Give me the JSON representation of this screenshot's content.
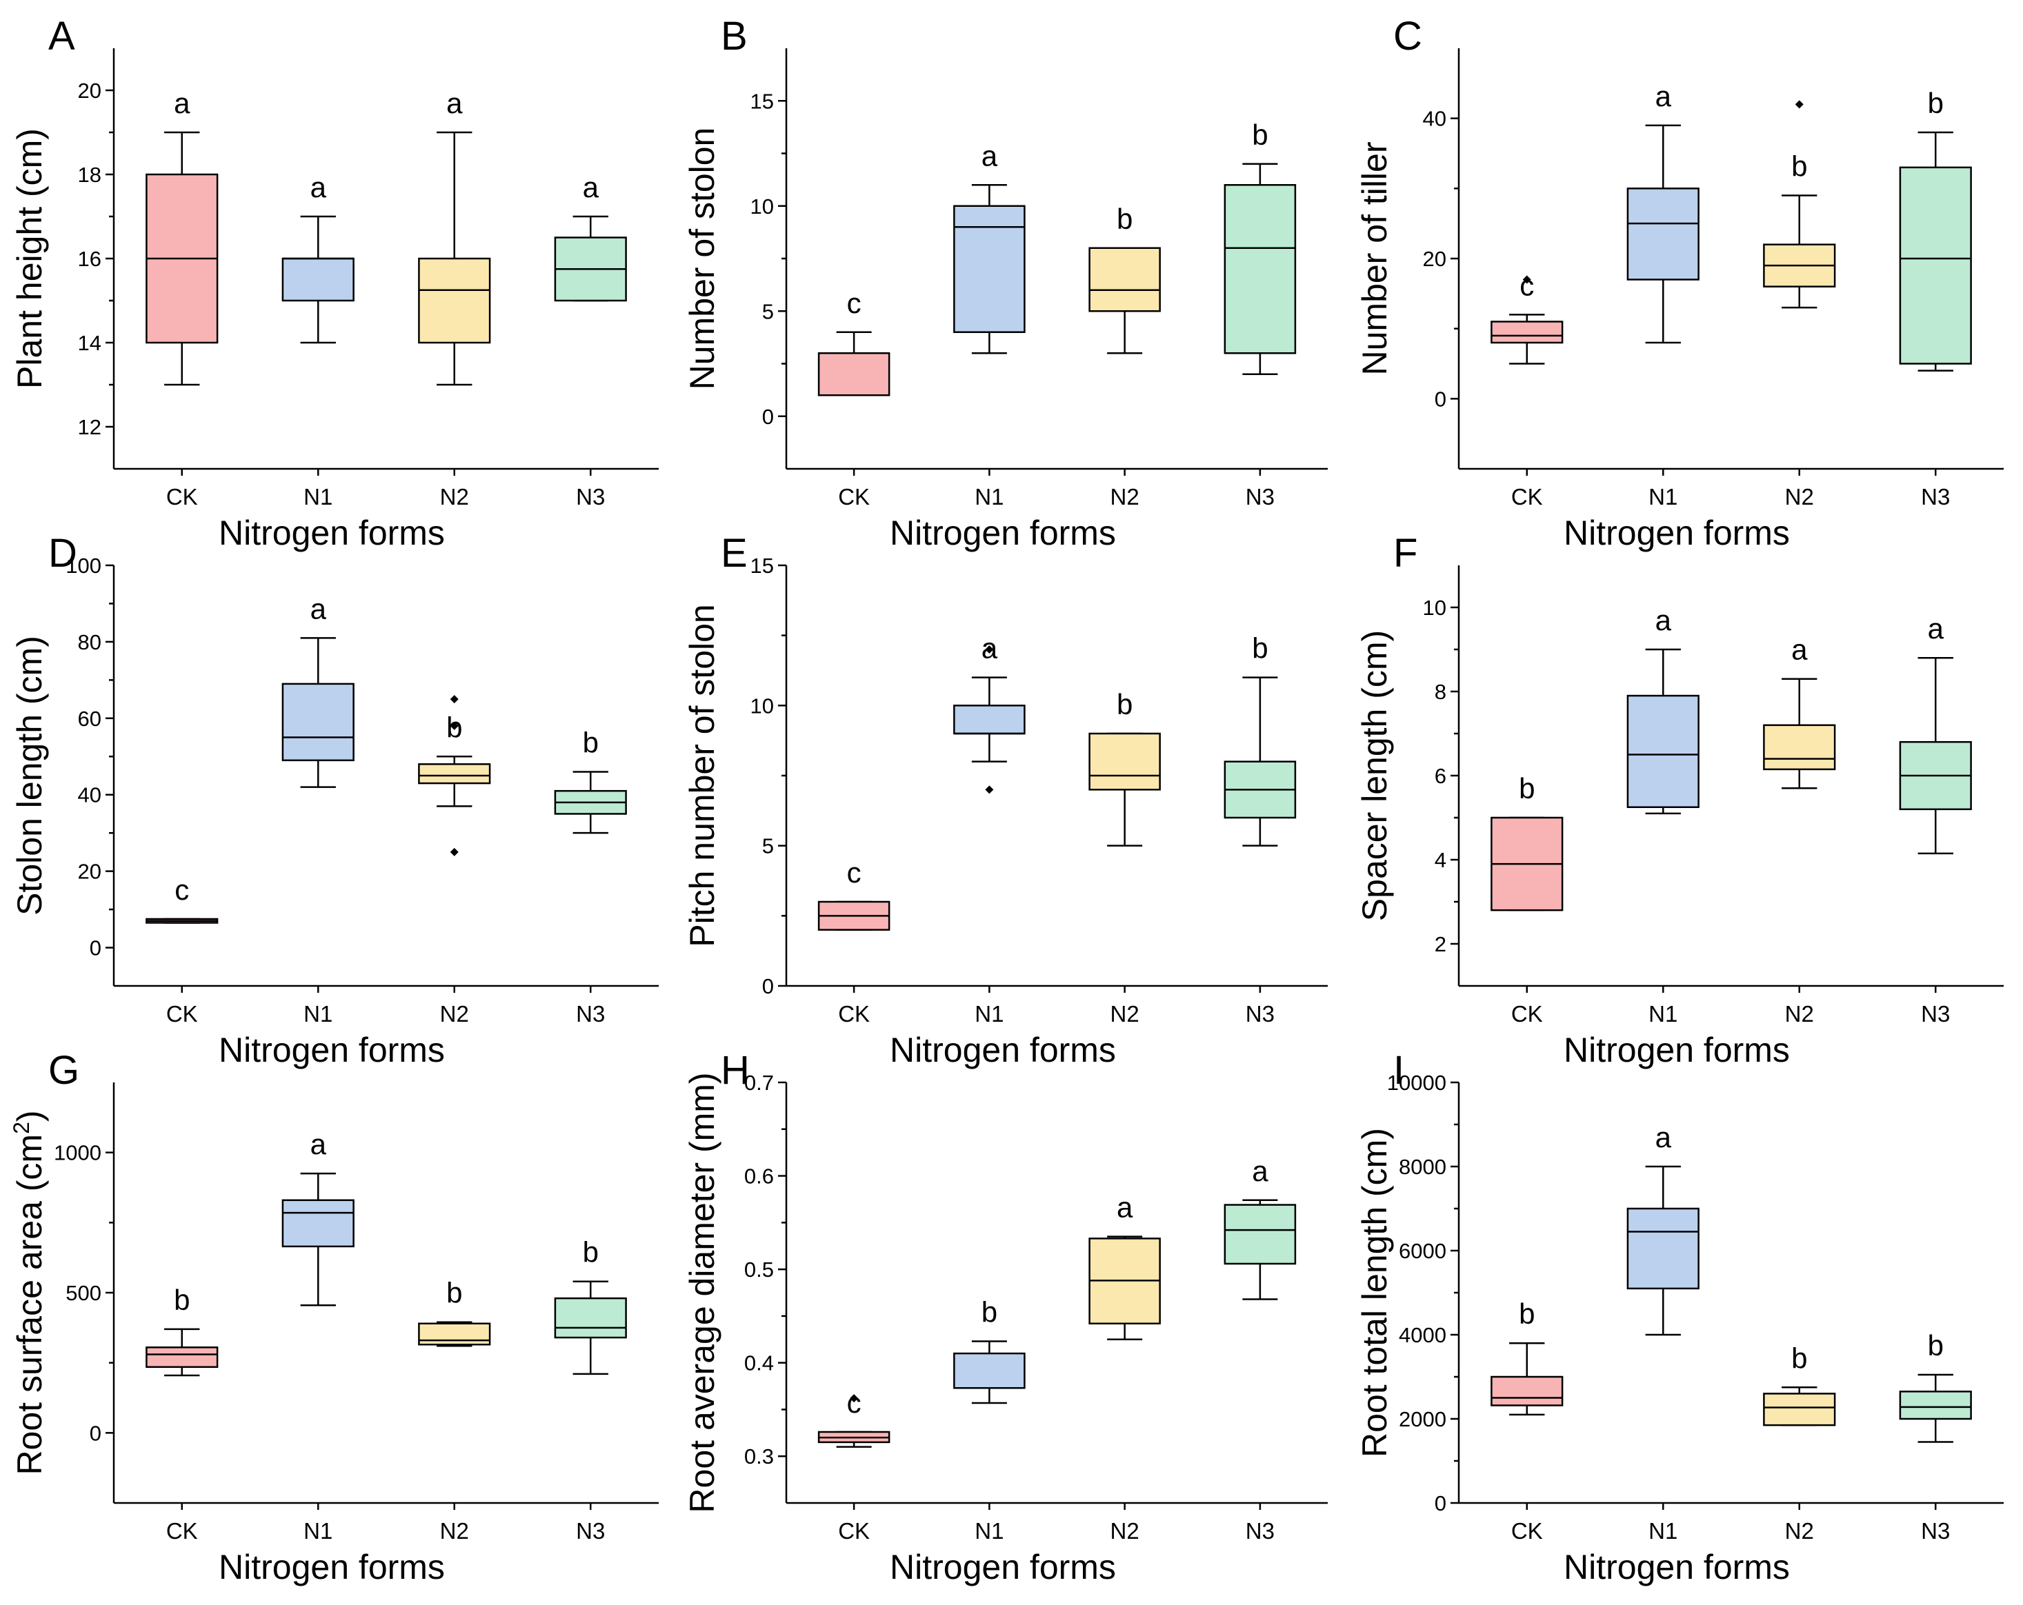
{
  "figure": {
    "categories": [
      "CK",
      "N1",
      "N2",
      "N3"
    ],
    "x_label": "Nitrogen forms",
    "colors": {
      "CK": "#F8B4B4",
      "N1": "#BCD1EE",
      "N2": "#FBE8AF",
      "N3": "#BDEAD3"
    }
  },
  "chart_data": [
    {
      "panel": "A",
      "type": "box",
      "ylabel": "Plant height (cm)",
      "xlabel": "Nitrogen forms",
      "ylim": [
        11,
        21
      ],
      "yticks": [
        12,
        14,
        16,
        18,
        20
      ],
      "categories": [
        "CK",
        "N1",
        "N2",
        "N3"
      ],
      "boxes": [
        {
          "group": "CK",
          "min": 13,
          "q1": 14,
          "median": 16,
          "q3": 18,
          "max": 19,
          "outliers": [],
          "letter": "a"
        },
        {
          "group": "N1",
          "min": 14,
          "q1": 15,
          "median": 16,
          "q3": 16,
          "max": 17,
          "outliers": [],
          "letter": "a"
        },
        {
          "group": "N2",
          "min": 13,
          "q1": 14,
          "median": 15.25,
          "q3": 16,
          "max": 19,
          "outliers": [],
          "letter": "a"
        },
        {
          "group": "N3",
          "min": 15,
          "q1": 15,
          "median": 15.75,
          "q3": 16.5,
          "max": 17,
          "outliers": [],
          "letter": "a"
        }
      ]
    },
    {
      "panel": "B",
      "type": "box",
      "ylabel": "Number of stolon",
      "xlabel": "Nitrogen forms",
      "ylim": [
        -2.5,
        17.5
      ],
      "yticks": [
        0,
        5,
        10,
        15
      ],
      "categories": [
        "CK",
        "N1",
        "N2",
        "N3"
      ],
      "boxes": [
        {
          "group": "CK",
          "min": 1,
          "q1": 1,
          "median": 1,
          "q3": 3,
          "max": 4,
          "outliers": [],
          "letter": "c"
        },
        {
          "group": "N1",
          "min": 3,
          "q1": 4,
          "median": 9,
          "q3": 10,
          "max": 11,
          "outliers": [],
          "letter": "a"
        },
        {
          "group": "N2",
          "min": 3,
          "q1": 5,
          "median": 6,
          "q3": 8,
          "max": 8,
          "outliers": [],
          "letter": "b"
        },
        {
          "group": "N3",
          "min": 2,
          "q1": 3,
          "median": 8,
          "q3": 11,
          "max": 12,
          "outliers": [],
          "letter": "b"
        }
      ]
    },
    {
      "panel": "C",
      "type": "box",
      "ylabel": "Number of tiller",
      "xlabel": "Nitrogen forms",
      "ylim": [
        -10,
        50
      ],
      "yticks": [
        0,
        20,
        40
      ],
      "categories": [
        "CK",
        "N1",
        "N2",
        "N3"
      ],
      "boxes": [
        {
          "group": "CK",
          "min": 5,
          "q1": 8,
          "median": 9,
          "q3": 11,
          "max": 12,
          "outliers": [
            17
          ],
          "letter": "c"
        },
        {
          "group": "N1",
          "min": 8,
          "q1": 17,
          "median": 25,
          "q3": 30,
          "max": 39,
          "outliers": [],
          "letter": "a"
        },
        {
          "group": "N2",
          "min": 13,
          "q1": 16,
          "median": 19,
          "q3": 22,
          "max": 29,
          "outliers": [
            42
          ],
          "letter": "b"
        },
        {
          "group": "N3",
          "min": 4,
          "q1": 5,
          "median": 20,
          "q3": 33,
          "max": 38,
          "outliers": [],
          "letter": "b"
        }
      ]
    },
    {
      "panel": "D",
      "type": "box",
      "ylabel": "Stolon length (cm)",
      "xlabel": "Nitrogen forms",
      "ylim": [
        -10,
        100
      ],
      "yticks": [
        0,
        20,
        40,
        60,
        80,
        100
      ],
      "categories": [
        "CK",
        "N1",
        "N2",
        "N3"
      ],
      "boxes": [
        {
          "group": "CK",
          "min": 6.5,
          "q1": 6.5,
          "median": 7,
          "q3": 7.5,
          "max": 7.5,
          "outliers": [],
          "letter": "c"
        },
        {
          "group": "N1",
          "min": 42,
          "q1": 49,
          "median": 55,
          "q3": 69,
          "max": 81,
          "outliers": [],
          "letter": "a"
        },
        {
          "group": "N2",
          "min": 37,
          "q1": 43,
          "median": 45,
          "q3": 48,
          "max": 50,
          "outliers": [
            25,
            58,
            65
          ],
          "letter": "b"
        },
        {
          "group": "N3",
          "min": 30,
          "q1": 35,
          "median": 38,
          "q3": 41,
          "max": 46,
          "outliers": [],
          "letter": "b"
        }
      ]
    },
    {
      "panel": "E",
      "type": "box",
      "ylabel": "Pitch number of stolon",
      "xlabel": "Nitrogen forms",
      "ylim": [
        0,
        15
      ],
      "yticks": [
        0,
        5,
        10,
        15
      ],
      "categories": [
        "CK",
        "N1",
        "N2",
        "N3"
      ],
      "boxes": [
        {
          "group": "CK",
          "min": 2,
          "q1": 2,
          "median": 2.5,
          "q3": 3,
          "max": 3,
          "outliers": [],
          "letter": "c"
        },
        {
          "group": "N1",
          "min": 8,
          "q1": 9,
          "median": 9,
          "q3": 10,
          "max": 11,
          "outliers": [
            7,
            12
          ],
          "letter": "a"
        },
        {
          "group": "N2",
          "min": 5,
          "q1": 7,
          "median": 7.5,
          "q3": 9,
          "max": 9,
          "outliers": [],
          "letter": "b"
        },
        {
          "group": "N3",
          "min": 5,
          "q1": 6,
          "median": 7,
          "q3": 8,
          "max": 11,
          "outliers": [],
          "letter": "b"
        }
      ]
    },
    {
      "panel": "F",
      "type": "box",
      "ylabel": "Spacer length (cm)",
      "xlabel": "Nitrogen forms",
      "ylim": [
        1,
        11
      ],
      "yticks": [
        2,
        4,
        6,
        8,
        10
      ],
      "categories": [
        "CK",
        "N1",
        "N2",
        "N3"
      ],
      "boxes": [
        {
          "group": "CK",
          "min": 2.8,
          "q1": 2.8,
          "median": 3.9,
          "q3": 5,
          "max": 5,
          "outliers": [],
          "letter": "b"
        },
        {
          "group": "N1",
          "min": 5.1,
          "q1": 5.25,
          "median": 6.5,
          "q3": 7.9,
          "max": 9,
          "outliers": [],
          "letter": "a"
        },
        {
          "group": "N2",
          "min": 5.7,
          "q1": 6.15,
          "median": 6.4,
          "q3": 7.2,
          "max": 8.3,
          "outliers": [],
          "letter": "a"
        },
        {
          "group": "N3",
          "min": 4.15,
          "q1": 5.2,
          "median": 6,
          "q3": 6.8,
          "max": 8.8,
          "outliers": [],
          "letter": "a"
        }
      ]
    },
    {
      "panel": "G",
      "type": "box",
      "ylabel": "Root surface area (cm²)",
      "xlabel": "Nitrogen forms",
      "ylim": [
        -250,
        1250
      ],
      "yticks": [
        0,
        500,
        1000
      ],
      "categories": [
        "CK",
        "N1",
        "N2",
        "N3"
      ],
      "boxes": [
        {
          "group": "CK",
          "min": 205,
          "q1": 235,
          "median": 280,
          "q3": 305,
          "max": 370,
          "outliers": [],
          "letter": "b"
        },
        {
          "group": "N1",
          "min": 455,
          "q1": 665,
          "median": 785,
          "q3": 830,
          "max": 925,
          "outliers": [],
          "letter": "a"
        },
        {
          "group": "N2",
          "min": 310,
          "q1": 315,
          "median": 330,
          "q3": 390,
          "max": 395,
          "outliers": [],
          "letter": "b"
        },
        {
          "group": "N3",
          "min": 210,
          "q1": 340,
          "median": 375,
          "q3": 480,
          "max": 540,
          "outliers": [],
          "letter": "b"
        }
      ]
    },
    {
      "panel": "H",
      "type": "box",
      "ylabel": "Root average diameter (mm)",
      "xlabel": "Nitrogen forms",
      "ylim": [
        0.25,
        0.7
      ],
      "yticks": [
        0.3,
        0.4,
        0.5,
        0.6,
        0.7
      ],
      "categories": [
        "CK",
        "N1",
        "N2",
        "N3"
      ],
      "boxes": [
        {
          "group": "CK",
          "min": 0.31,
          "q1": 0.315,
          "median": 0.32,
          "q3": 0.326,
          "max": 0.326,
          "outliers": [
            0.362
          ],
          "letter": "c"
        },
        {
          "group": "N1",
          "min": 0.357,
          "q1": 0.373,
          "median": 0.373,
          "q3": 0.41,
          "max": 0.423,
          "outliers": [],
          "letter": "b"
        },
        {
          "group": "N2",
          "min": 0.425,
          "q1": 0.442,
          "median": 0.488,
          "q3": 0.533,
          "max": 0.535,
          "outliers": [],
          "letter": "a"
        },
        {
          "group": "N3",
          "min": 0.468,
          "q1": 0.506,
          "median": 0.542,
          "q3": 0.569,
          "max": 0.574,
          "outliers": [],
          "letter": "a"
        }
      ]
    },
    {
      "panel": "I",
      "type": "box",
      "ylabel": "Root total length (cm)",
      "xlabel": "Nitrogen forms",
      "ylim": [
        0,
        10000
      ],
      "yticks": [
        0,
        2000,
        4000,
        6000,
        8000,
        10000
      ],
      "categories": [
        "CK",
        "N1",
        "N2",
        "N3"
      ],
      "boxes": [
        {
          "group": "CK",
          "min": 2100,
          "q1": 2320,
          "median": 2500,
          "q3": 3000,
          "max": 3800,
          "outliers": [],
          "letter": "b"
        },
        {
          "group": "N1",
          "min": 4000,
          "q1": 5100,
          "median": 6450,
          "q3": 7000,
          "max": 8000,
          "outliers": [],
          "letter": "a"
        },
        {
          "group": "N2",
          "min": 1850,
          "q1": 1850,
          "median": 2270,
          "q3": 2600,
          "max": 2750,
          "outliers": [],
          "letter": "b"
        },
        {
          "group": "N3",
          "min": 1450,
          "q1": 2000,
          "median": 2280,
          "q3": 2650,
          "max": 3050,
          "outliers": [],
          "letter": "b"
        }
      ]
    }
  ]
}
